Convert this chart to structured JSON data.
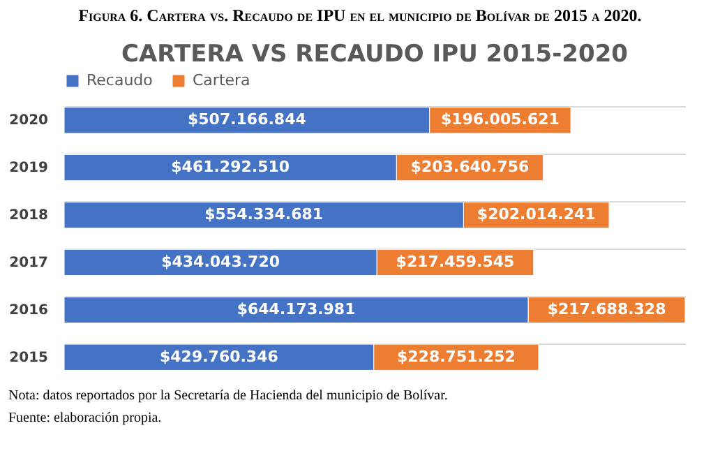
{
  "chart_data": {
    "type": "bar",
    "orientation": "horizontal",
    "stacked": true,
    "title": "CARTERA VS RECAUDO IPU 2015-2020",
    "categories": [
      "2020",
      "2019",
      "2018",
      "2017",
      "2016",
      "2015"
    ],
    "series": [
      {
        "name": "Recaudo",
        "color": "#4472c4",
        "values": [
          507166844,
          461292510,
          554334681,
          434043720,
          644173981,
          429760346
        ],
        "value_labels": [
          "$507.166.844",
          "$461.292.510",
          "$554.334.681",
          "$434.043.720",
          "$644.173.981",
          "$429.760.346"
        ]
      },
      {
        "name": "Cartera",
        "color": "#ed7d31",
        "values": [
          196005621,
          203640756,
          202014241,
          217459545,
          217688328,
          228751252
        ],
        "value_labels": [
          "$196.005.621",
          "$203.640.756",
          "$202.014.241",
          "$217.459.545",
          "$217.688.328",
          "$228.751.252"
        ]
      }
    ],
    "legend": "top",
    "grid": "y",
    "tick_labels": "y",
    "annotations": [
      "Figura 6. Cartera vs. Recaudo de IPU en el municipio de Bolívar de 2015 a 2020.",
      "Nota: datos reportados por la Secretaría de Hacienda del municipio de Bolívar.",
      "Fuente: elaboración propia."
    ]
  }
}
